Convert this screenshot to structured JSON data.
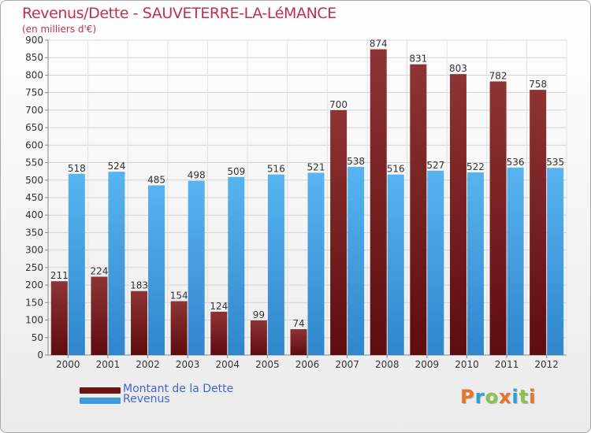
{
  "header": {
    "title": "Revenus/Dette - SAUVETERRE-LA-LéMANCE",
    "subtitle": "(en milliers d'€)"
  },
  "legend": {
    "items": [
      {
        "label": "Montant de la Dette",
        "color": "#7a1f20"
      },
      {
        "label": "Revenus",
        "color": "#3d9ae0"
      }
    ]
  },
  "logo": {
    "text": "Proxiti",
    "colors": [
      "#e8742a",
      "#2aa0d8",
      "#8bc34a",
      "#e8742a",
      "#2aa0d8",
      "#8bc34a",
      "#e8742a"
    ]
  },
  "colors": {
    "dette": "#7a1f20",
    "revenus": "#3d9ae0"
  },
  "chart_data": {
    "type": "bar",
    "categories": [
      "2000",
      "2001",
      "2002",
      "2003",
      "2004",
      "2005",
      "2006",
      "2007",
      "2008",
      "2009",
      "2010",
      "2011",
      "2012"
    ],
    "series": [
      {
        "name": "Montant de la Dette",
        "values": [
          211,
          224,
          183,
          154,
          124,
          99,
          74,
          700,
          874,
          831,
          803,
          782,
          758
        ]
      },
      {
        "name": "Revenus",
        "values": [
          518,
          524,
          485,
          498,
          509,
          516,
          521,
          538,
          516,
          527,
          522,
          536,
          535
        ]
      }
    ],
    "ylim": [
      0,
      900
    ],
    "ytick_step": 50,
    "yticks": [
      "0",
      "50",
      "100",
      "150",
      "200",
      "250",
      "300",
      "350",
      "400",
      "450",
      "500",
      "550",
      "600",
      "650",
      "700",
      "750",
      "800",
      "850",
      "900"
    ],
    "grid": true,
    "legend_position": "bottom-left",
    "title": "Revenus/Dette - SAUVETERRE-LA-LéMANCE",
    "xlabel": "",
    "ylabel": "(en milliers d'€)"
  }
}
